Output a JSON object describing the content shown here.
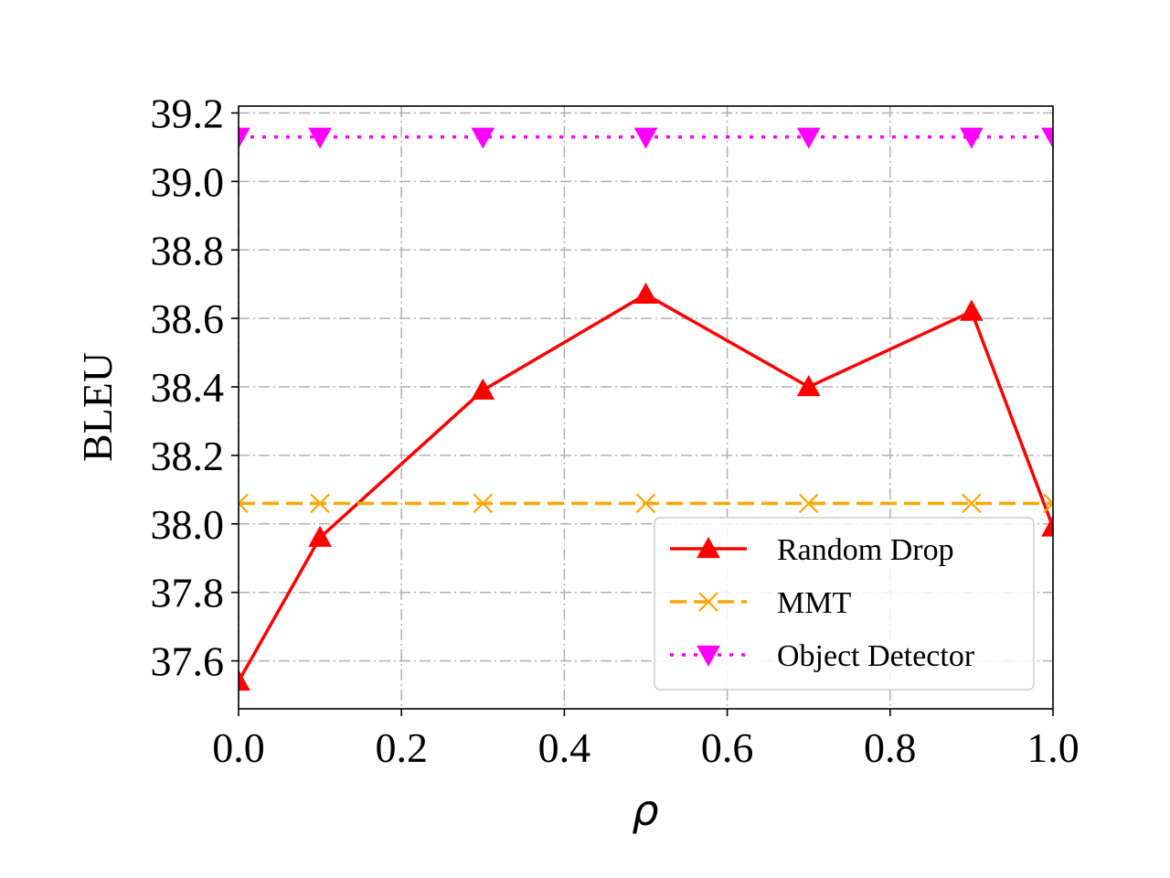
{
  "chart_data": {
    "type": "line",
    "title": "",
    "xlabel": "ρ",
    "ylabel": "BLEU",
    "xlim": [
      0.0,
      1.0
    ],
    "ylim": [
      37.46,
      39.22
    ],
    "xticks": [
      "0.0",
      "0.2",
      "0.4",
      "0.6",
      "0.8",
      "1.0"
    ],
    "xtick_values": [
      0.0,
      0.2,
      0.4,
      0.6,
      0.8,
      1.0
    ],
    "yticks": [
      "37.6",
      "37.8",
      "38.0",
      "38.2",
      "38.4",
      "38.6",
      "38.8",
      "39.0",
      "39.2"
    ],
    "ytick_values": [
      37.6,
      37.8,
      38.0,
      38.2,
      38.4,
      38.6,
      38.8,
      39.0,
      39.2
    ],
    "grid": true,
    "legend_position": "lower-right",
    "x": [
      0.0,
      0.1,
      0.3,
      0.5,
      0.7,
      0.9,
      1.0
    ],
    "series": [
      {
        "name": "Random Drop",
        "color": "#ff0000",
        "line": "solid",
        "marker": "triangle-up",
        "values": [
          37.54,
          37.96,
          38.39,
          38.67,
          38.4,
          38.62,
          37.99
        ]
      },
      {
        "name": "MMT",
        "color": "#ffa500",
        "line": "dashed",
        "marker": "x",
        "values": [
          38.06,
          38.06,
          38.06,
          38.06,
          38.06,
          38.06,
          38.06
        ]
      },
      {
        "name": "Object Detector",
        "color": "#ff00ff",
        "line": "dotted",
        "marker": "triangle-down",
        "values": [
          39.13,
          39.13,
          39.13,
          39.13,
          39.13,
          39.13,
          39.13
        ]
      }
    ]
  }
}
